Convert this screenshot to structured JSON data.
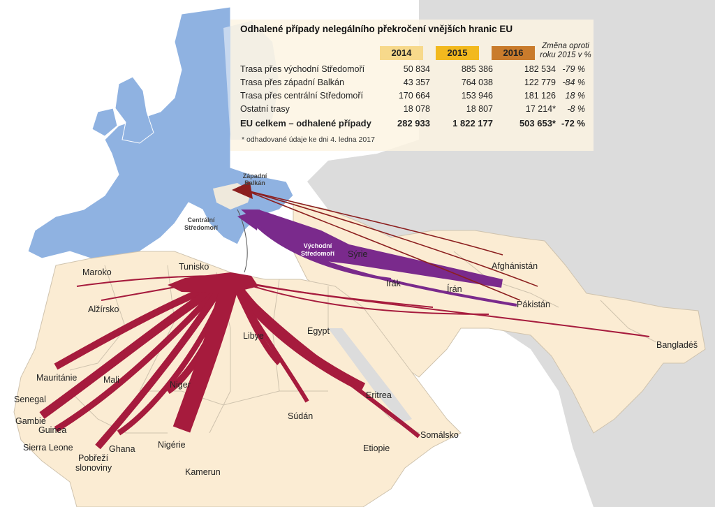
{
  "table": {
    "title": "Odhalené případy nelegálního překročení vnějších hranic EU",
    "years": [
      {
        "label": "2014",
        "color": "#f7d98b"
      },
      {
        "label": "2015",
        "color": "#f2b91e"
      },
      {
        "label": "2016",
        "color": "#c97b2c"
      }
    ],
    "change_header": "Změna oproti roku 2015 v %",
    "rows": [
      {
        "name": "Trasa přes východní Středomoří",
        "v2014": "50 834",
        "v2015": "885 386",
        "v2016": "182 534",
        "change": "-79 %"
      },
      {
        "name": "Trasa přes západní Balkán",
        "v2014": "43 357",
        "v2015": "764 038",
        "v2016": "122 779",
        "change": "-84 %"
      },
      {
        "name": "Trasa přes centrální Středomoří",
        "v2014": "170 664",
        "v2015": "153 946",
        "v2016": "181 126",
        "change": "18 %"
      },
      {
        "name": "Ostatní trasy",
        "v2014": "18 078",
        "v2015": "18 807",
        "v2016": "17 214*",
        "change": "-8 %"
      }
    ],
    "total": {
      "name": "EU celkem – odhalené případy",
      "v2014": "282 933",
      "v2015": "1 822 177",
      "v2016": "503 653*",
      "change": "-72 %"
    },
    "footnote": "* odhadované údaje ke dni 4. ledna 2017"
  },
  "map": {
    "colors": {
      "sea": "#ffffff",
      "eu": "#8fb2e1",
      "eu_border": "#ffffff",
      "africa": "#fbecd3",
      "africa_border": "#cfc3ae",
      "asia": "#dcdcdc",
      "central_route": "#a61b3d",
      "east_route": "#7a2a8c",
      "balkan_route": "#8c1f1f"
    },
    "route_labels": {
      "balkan_line1": "Západní",
      "balkan_line2": "Balkán",
      "central_line1": "Centrální",
      "central_line2": "Středomoří",
      "east_line1": "Východní",
      "east_line2": "Středomoří"
    },
    "countries": {
      "maroko": "Maroko",
      "alzirsko": "Alžírsko",
      "tunisko": "Tunisko",
      "libye": "Libye",
      "egypt": "Egypt",
      "mauritanie": "Mauritánie",
      "mali": "Mali",
      "niger": "Niger",
      "senegal": "Senegal",
      "gambie": "Gambie",
      "guinea": "Guinea",
      "sierra_leone": "Sierra Leone",
      "pobrezi_1": "Pobřeží",
      "pobrezi_2": "slonoviny",
      "ghana": "Ghana",
      "nigerie": "Nigérie",
      "kamerun": "Kamerun",
      "sudan": "Súdán",
      "eritrea": "Eritrea",
      "etiopie": "Etiopie",
      "somalsko": "Somálsko",
      "syrie": "Sýrie",
      "irak": "Irák",
      "iran": "Írán",
      "afghanistan": "Afghánistán",
      "pakistan": "Pákistán",
      "banglades": "Bangladéš"
    }
  }
}
